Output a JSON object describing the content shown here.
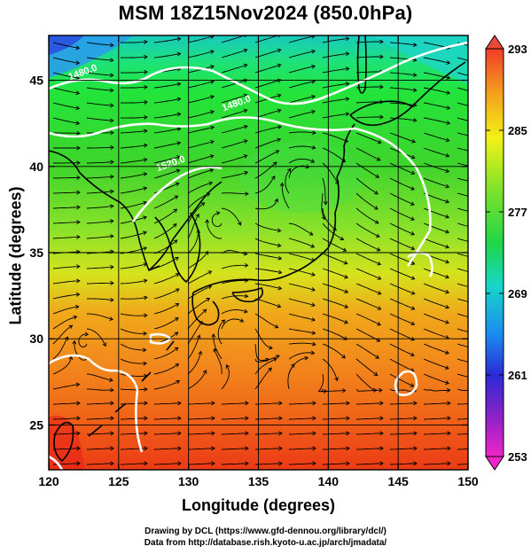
{
  "title": "MSM 18Z15Nov2024 (850.0hPa)",
  "chart_data": {
    "type": "map",
    "title": "MSM 18Z15Nov2024 (850.0hPa)",
    "xlabel": "Longitude (degrees)",
    "ylabel": "Latitude  (degrees)",
    "xlim": [
      120,
      150
    ],
    "ylim": [
      22.4,
      47.6
    ],
    "x_ticks": [
      120,
      125,
      130,
      135,
      140,
      145,
      150
    ],
    "y_ticks": [
      25,
      30,
      35,
      40,
      45
    ],
    "x_tick_labels": [
      "120",
      "125",
      "130",
      "135",
      "140",
      "145",
      "150"
    ],
    "y_tick_labels": [
      "25",
      "30",
      "35",
      "40",
      "45"
    ],
    "grid": true,
    "colorbar": {
      "position": "right",
      "min": 253,
      "max": 293,
      "tick_values": [
        293,
        285,
        277,
        269,
        261,
        253
      ],
      "tick_labels": [
        "293",
        "285",
        "277",
        "269",
        "261",
        "253"
      ]
    },
    "contour_labels": [
      {
        "text": "1480.0",
        "lon": 122.5,
        "lat": 45.3
      },
      {
        "text": "1480.0",
        "lon": 133.5,
        "lat": 43.5
      },
      {
        "text": "1520.0",
        "lon": 128.8,
        "lat": 40.0
      }
    ]
  },
  "credits": {
    "line1": "Drawing by DCL (https://www.gfd-dennou.org/library/dcl/)",
    "line2": "Data from http://database.rish.kyoto-u.ac.jp/arch/jmadata/"
  }
}
